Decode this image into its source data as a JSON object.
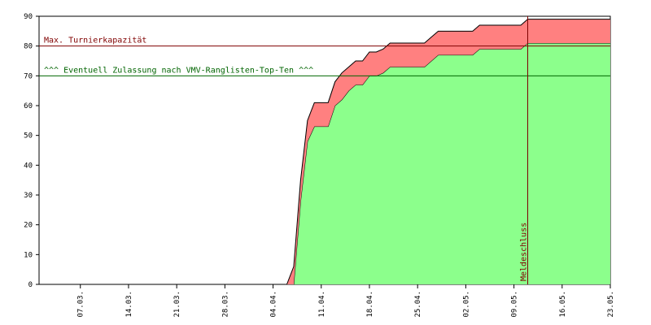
{
  "chart_data": {
    "type": "stacked-area",
    "x": [
      "01.03.",
      "06.04.",
      "07.04.",
      "08.04.",
      "09.04.",
      "10.04.",
      "12.04.",
      "13.04.",
      "14.04.",
      "15.04.",
      "16.04.",
      "17.04.",
      "18.04.",
      "19.04.",
      "20.04.",
      "21.04.",
      "26.04.",
      "27.04.",
      "28.04.",
      "03.05.",
      "04.05.",
      "10.05.",
      "11.05.",
      "23.05."
    ],
    "series": [
      {
        "color": "#8cff8c",
        "values": [
          0,
          0,
          0,
          28,
          48,
          53,
          53,
          60,
          62,
          65,
          67,
          67,
          70,
          70,
          71,
          73,
          73,
          75,
          77,
          77,
          79,
          79,
          81,
          81
        ]
      },
      {
        "color": "#ff8080",
        "values": [
          0,
          0,
          6,
          7,
          7,
          8,
          8,
          8,
          9,
          8,
          8,
          8,
          8,
          8,
          8,
          8,
          8,
          8,
          8,
          8,
          8,
          8,
          8,
          8
        ]
      }
    ],
    "xlim": [
      "01.03.",
      "23.05."
    ],
    "xticks": [
      "07.03.",
      "14.03.",
      "21.03.",
      "28.03.",
      "04.04.",
      "11.04.",
      "18.04.",
      "25.04.",
      "02.05.",
      "09.05.",
      "16.05.",
      "23.05."
    ],
    "ylim": [
      0,
      90
    ],
    "yticks": [
      0,
      10,
      20,
      30,
      40,
      50,
      60,
      70,
      80,
      90
    ],
    "hlines": [
      {
        "y": 80,
        "text": "Max. Turnierkapazität",
        "color": "#800000"
      },
      {
        "y": 70,
        "text": "^^^ Eventuell Zulassung nach VMV-Ranglisten-Top-Ten ^^^",
        "color": "#006400"
      }
    ],
    "vlines": [
      {
        "x": "11.05.",
        "text": "Meldeschluss",
        "color": "#800000"
      }
    ]
  }
}
